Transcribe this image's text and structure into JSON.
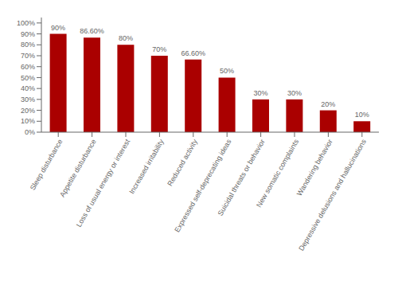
{
  "chart_data": {
    "type": "bar",
    "categories": [
      "Sleep disturbance",
      "Appetite disturbance",
      "Loss of usual energy or interest",
      "Increased irritability",
      "Reduced activity",
      "Expressed self-deprecating ideas",
      "Suicidal threats or behavior",
      "New somatic complaints",
      "Wandering behavior",
      "Depressive delusions and hallucinations"
    ],
    "values": [
      90,
      86.6,
      80,
      70,
      66.6,
      50,
      30,
      30,
      20,
      10
    ],
    "value_labels": [
      "90%",
      "86.60%",
      "80%",
      "70%",
      "66.60%",
      "50%",
      "30%",
      "30%",
      "20%",
      "10%"
    ],
    "data_labels": true,
    "color": "#aa0000",
    "ylim": [
      0,
      105
    ],
    "yticks": [
      {
        "value": 0,
        "label": "0%"
      },
      {
        "value": 10,
        "label": "10%"
      },
      {
        "value": 20,
        "label": "20%"
      },
      {
        "value": 30,
        "label": "30%"
      },
      {
        "value": 40,
        "label": "40%"
      },
      {
        "value": 50,
        "label": "50%"
      },
      {
        "value": 60,
        "label": "60%"
      },
      {
        "value": 70,
        "label": "70%"
      },
      {
        "value": 80,
        "label": "80%"
      },
      {
        "value": 90,
        "label": "90%"
      },
      {
        "value": 100,
        "label": "100%"
      }
    ],
    "grid": false
  }
}
